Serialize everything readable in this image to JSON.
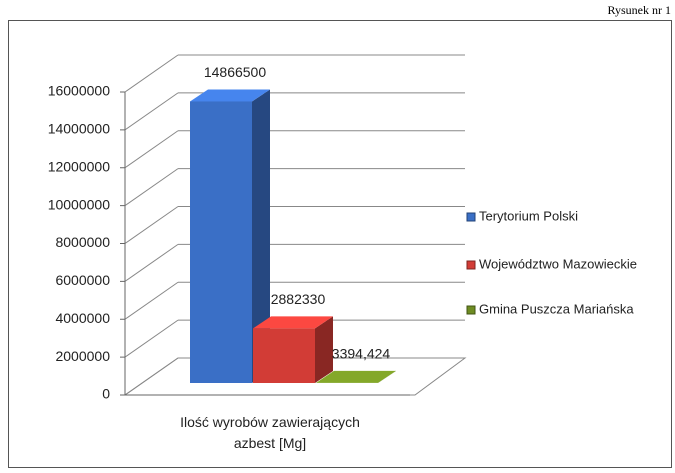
{
  "caption": "Rysunek nr 1",
  "chart_data": {
    "type": "bar3d",
    "categories": [
      "Ilość wyrobów zawierających azbest [Mg]"
    ],
    "series": [
      {
        "name": "Terytorium Polski",
        "color": "#3a6fc6",
        "values": [
          14866500
        ],
        "value_labels": [
          "14866500"
        ]
      },
      {
        "name": "Województwo Mazowieckie",
        "color": "#d23c36",
        "values": [
          2882330
        ],
        "value_labels": [
          "2882330"
        ]
      },
      {
        "name": "Gmina Puszcza Mariańska",
        "color": "#6e8c22",
        "values": [
          3394.424
        ],
        "value_labels": [
          "3394,424"
        ]
      }
    ],
    "ylim": [
      0,
      16000000
    ],
    "yticks": [
      0,
      2000000,
      4000000,
      6000000,
      8000000,
      10000000,
      12000000,
      14000000,
      16000000
    ],
    "grid": true,
    "legend": "right"
  }
}
